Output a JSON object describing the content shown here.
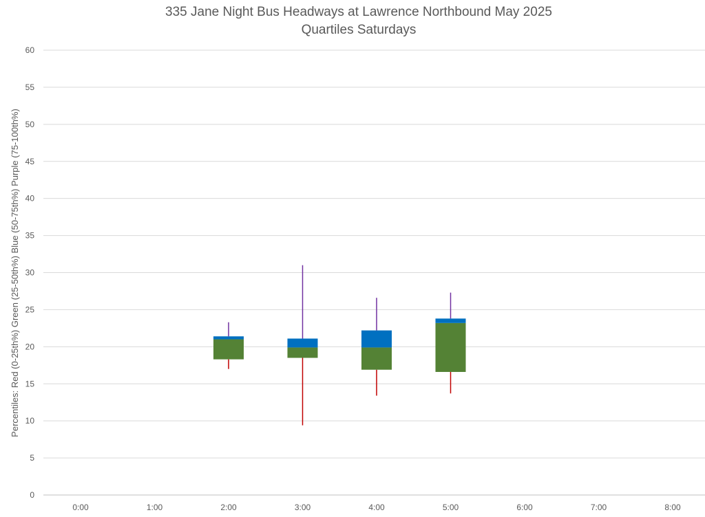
{
  "chart_data": {
    "type": "box",
    "title": [
      "335 Jane Night Bus Headways at Lawrence Northbound May 2025",
      "Quartiles Saturdays"
    ],
    "ylabel": "Percentiles:  Red (0-25th%)  Green (25-50th%)  Blue (50-75th%)  Purple (75-100th%)",
    "xlabel": "",
    "ylim": [
      0,
      60
    ],
    "yticks": [
      0,
      5,
      10,
      15,
      20,
      25,
      30,
      35,
      40,
      45,
      50,
      55,
      60
    ],
    "categories": [
      "0:00",
      "1:00",
      "2:00",
      "3:00",
      "4:00",
      "5:00",
      "6:00",
      "7:00",
      "8:00"
    ],
    "grid": true,
    "colors": {
      "min_whisker": "#c00000",
      "q1_median": "#548235",
      "median_q3": "#0070c0",
      "max_whisker": "#7030a0"
    },
    "boxes": [
      {
        "x": "2:00",
        "min": 17.0,
        "q1": 18.3,
        "median": 21.0,
        "q3": 21.4,
        "max": 23.3
      },
      {
        "x": "3:00",
        "min": 9.4,
        "q1": 18.5,
        "median": 19.9,
        "q3": 21.1,
        "max": 31.0
      },
      {
        "x": "4:00",
        "min": 13.4,
        "q1": 16.9,
        "median": 19.9,
        "q3": 22.2,
        "max": 26.6
      },
      {
        "x": "5:00",
        "min": 13.7,
        "q1": 16.6,
        "median": 23.2,
        "q3": 23.8,
        "max": 27.3
      }
    ]
  }
}
